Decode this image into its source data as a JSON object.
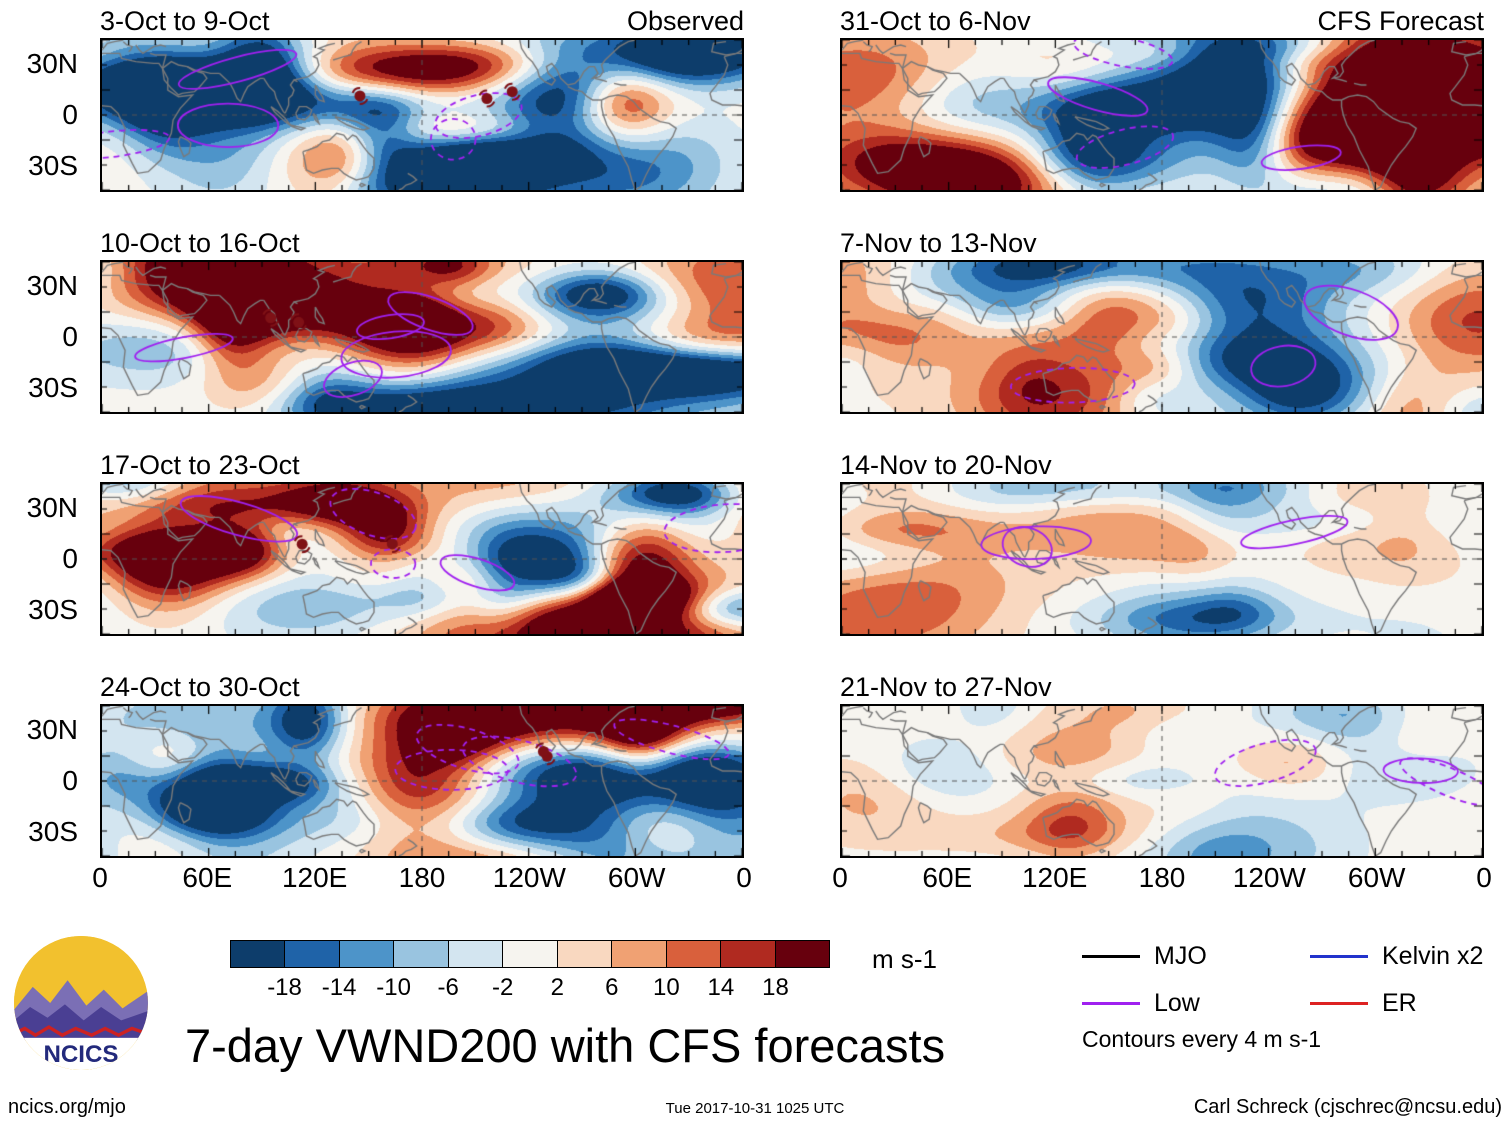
{
  "figure": {
    "title": "7-day VWND200 with CFS forecasts",
    "site": "ncics.org/mjo",
    "timestamp": "Tue 2017-10-31 1025 UTC",
    "credit": "Carl Schreck (cjschrec@ncsu.edu)",
    "logo_text": "NCICS"
  },
  "chart_data": {
    "type": "heatmap",
    "title": "7-day VWND200 with CFS forecasts",
    "description": "Eight global tropics map panels of 7-day averaged 200-hPa meridional wind anomalies; left column observed weeks, right column CFS forecast weeks; filled contours in m s-1 with purple Low contours overlaid",
    "columns": [
      {
        "header": "Observed"
      },
      {
        "header": "CFS Forecast"
      }
    ],
    "panels": [
      {
        "title": "3-Oct to 9-Oct",
        "column": "Observed",
        "seed": 11,
        "amplitude": 1.0,
        "low_contours": 5,
        "storm_markers": 3
      },
      {
        "title": "31-Oct to 6-Nov",
        "column": "CFS Forecast",
        "seed": 17,
        "amplitude": 0.95,
        "low_contours": 4,
        "storm_markers": 0
      },
      {
        "title": "10-Oct to 16-Oct",
        "column": "Observed",
        "seed": 23,
        "amplitude": 1.0,
        "low_contours": 5,
        "storm_markers": 2
      },
      {
        "title": "7-Nov to 13-Nov",
        "column": "CFS Forecast",
        "seed": 29,
        "amplitude": 0.72,
        "low_contours": 3,
        "storm_markers": 0
      },
      {
        "title": "17-Oct to 23-Oct",
        "column": "Observed",
        "seed": 37,
        "amplitude": 1.05,
        "low_contours": 5,
        "storm_markers": 2
      },
      {
        "title": "14-Nov to 20-Nov",
        "column": "CFS Forecast",
        "seed": 43,
        "amplitude": 0.45,
        "low_contours": 3,
        "storm_markers": 0
      },
      {
        "title": "24-Oct to 30-Oct",
        "column": "Observed",
        "seed": 53,
        "amplitude": 1.0,
        "low_contours": 4,
        "storm_markers": 2
      },
      {
        "title": "21-Nov to 27-Nov",
        "column": "CFS Forecast",
        "seed": 59,
        "amplitude": 0.4,
        "low_contours": 3,
        "storm_markers": 0
      }
    ],
    "y_axis": {
      "ticks": [
        "30N",
        "0",
        "30S"
      ],
      "tick_lats": [
        30,
        0,
        -30
      ],
      "lat_range": [
        -45,
        45
      ]
    },
    "x_axis": {
      "ticks": [
        "0",
        "60E",
        "120E",
        "180",
        "120W",
        "60W",
        "0"
      ],
      "lon_range_deg": [
        0,
        360
      ]
    },
    "colorbar": {
      "units": "m s-1",
      "tick_values": [
        -18,
        -14,
        -10,
        -6,
        -2,
        2,
        6,
        10,
        14,
        18
      ],
      "colors": [
        "#0d3d6b",
        "#1f63a8",
        "#4d94c9",
        "#99c4e0",
        "#d3e5f0",
        "#f6f4ef",
        "#f9d8c0",
        "#f0a173",
        "#d9603c",
        "#b02a20",
        "#67000d"
      ]
    },
    "legend": {
      "items": [
        {
          "label": "MJO",
          "color": "#000000"
        },
        {
          "label": "Kelvin x2",
          "color": "#2233cc"
        },
        {
          "label": "Low",
          "color": "#a020f0"
        },
        {
          "label": "ER",
          "color": "#dd2222"
        }
      ],
      "note": "Contours every 4 m s-1"
    }
  }
}
